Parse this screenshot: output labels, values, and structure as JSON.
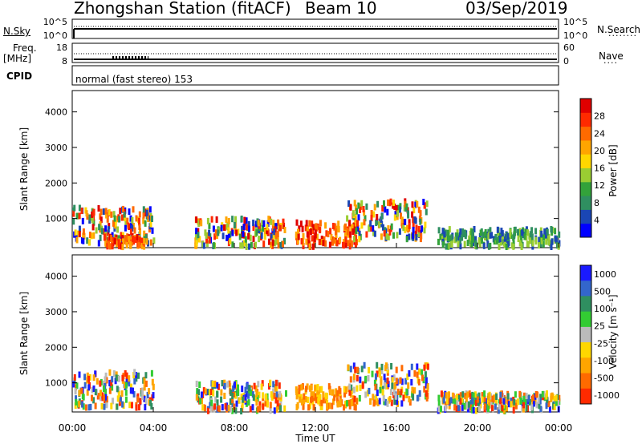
{
  "header": {
    "station": "Zhongshan Station (fitACF)",
    "beam": "Beam 10",
    "date": "03/Sep/2019"
  },
  "nsky_panel": {
    "left_label": "N.Sky",
    "right_label": "N.Search",
    "ticks_left": [
      "10^5",
      "10^0"
    ],
    "ticks_right": [
      "10^5",
      "10^0"
    ]
  },
  "freq_panel": {
    "left_label_1": "Freq.",
    "left_label_2": "[MHz]",
    "right_label": "Nave",
    "ticks_left": [
      "18",
      "8"
    ],
    "ticks_right": [
      "60",
      "0"
    ]
  },
  "cpid": {
    "label": "CPID",
    "value": "normal (fast stereo) 153"
  },
  "chart_data": [
    {
      "type": "heatmap",
      "title": "",
      "xlabel": "Time UT",
      "ylabel": "Slant Range [km]",
      "x_ticks": [
        "00:00",
        "04:00",
        "08:00",
        "12:00",
        "16:00",
        "20:00",
        "00:00"
      ],
      "y_ticks": [
        "1000",
        "2000",
        "3000",
        "4000"
      ],
      "ylim": [
        180,
        4600
      ],
      "colorbar": {
        "label": "Power [dB]",
        "ticks": [
          "4",
          "8",
          "12",
          "16",
          "20",
          "24",
          "28"
        ],
        "colors": [
          "#0000ff",
          "#1a46b4",
          "#2f8f60",
          "#33a23a",
          "#9acd32",
          "#ffd700",
          "#ffa500",
          "#ff6a00",
          "#ff2a00",
          "#e00000"
        ]
      },
      "echo_regions": [
        {
          "t_start": 0.0,
          "t_end": 4.0,
          "r_low": 300,
          "r_high": 1300,
          "level": "mixed"
        },
        {
          "t_start": 1.5,
          "t_end": 3.5,
          "r_low": 200,
          "r_high": 500,
          "level": "high"
        },
        {
          "t_start": 6.0,
          "t_end": 10.5,
          "r_low": 200,
          "r_high": 1000,
          "level": "mixed"
        },
        {
          "t_start": 11.0,
          "t_end": 14.0,
          "r_low": 200,
          "r_high": 900,
          "level": "high"
        },
        {
          "t_start": 13.5,
          "t_end": 17.5,
          "r_low": 400,
          "r_high": 1500,
          "level": "mixed"
        },
        {
          "t_start": 18.0,
          "t_end": 24.0,
          "r_low": 200,
          "r_high": 700,
          "level": "low"
        }
      ]
    },
    {
      "type": "heatmap",
      "title": "",
      "xlabel": "Time UT",
      "ylabel": "Slant Range [km]",
      "x_ticks": [
        "00:00",
        "04:00",
        "08:00",
        "12:00",
        "16:00",
        "20:00",
        "00:00"
      ],
      "y_ticks": [
        "1000",
        "2000",
        "3000",
        "4000"
      ],
      "ylim": [
        180,
        4600
      ],
      "colorbar": {
        "label": "Velocity [m s⁻¹]",
        "ticks": [
          "1000",
          "500",
          "100",
          "25",
          "-25",
          "-100",
          "-500",
          "-1000"
        ],
        "colors": [
          "#1a1aff",
          "#3366cc",
          "#2f8f60",
          "#33cc33",
          "#bbbbbb",
          "#ffd700",
          "#ffa500",
          "#ff6a00",
          "#ff2a00"
        ]
      },
      "echo_regions": [
        {
          "t_start": 0.0,
          "t_end": 4.0,
          "r_low": 300,
          "r_high": 1300,
          "level": "mixed"
        },
        {
          "t_start": 6.0,
          "t_end": 10.5,
          "r_low": 200,
          "r_high": 1000,
          "level": "mixed"
        },
        {
          "t_start": 11.0,
          "t_end": 14.0,
          "r_low": 300,
          "r_high": 900,
          "level": "negative"
        },
        {
          "t_start": 13.5,
          "t_end": 17.5,
          "r_low": 400,
          "r_high": 1500,
          "level": "mixed"
        },
        {
          "t_start": 18.0,
          "t_end": 24.0,
          "r_low": 200,
          "r_high": 700,
          "level": "mixed"
        }
      ]
    }
  ]
}
